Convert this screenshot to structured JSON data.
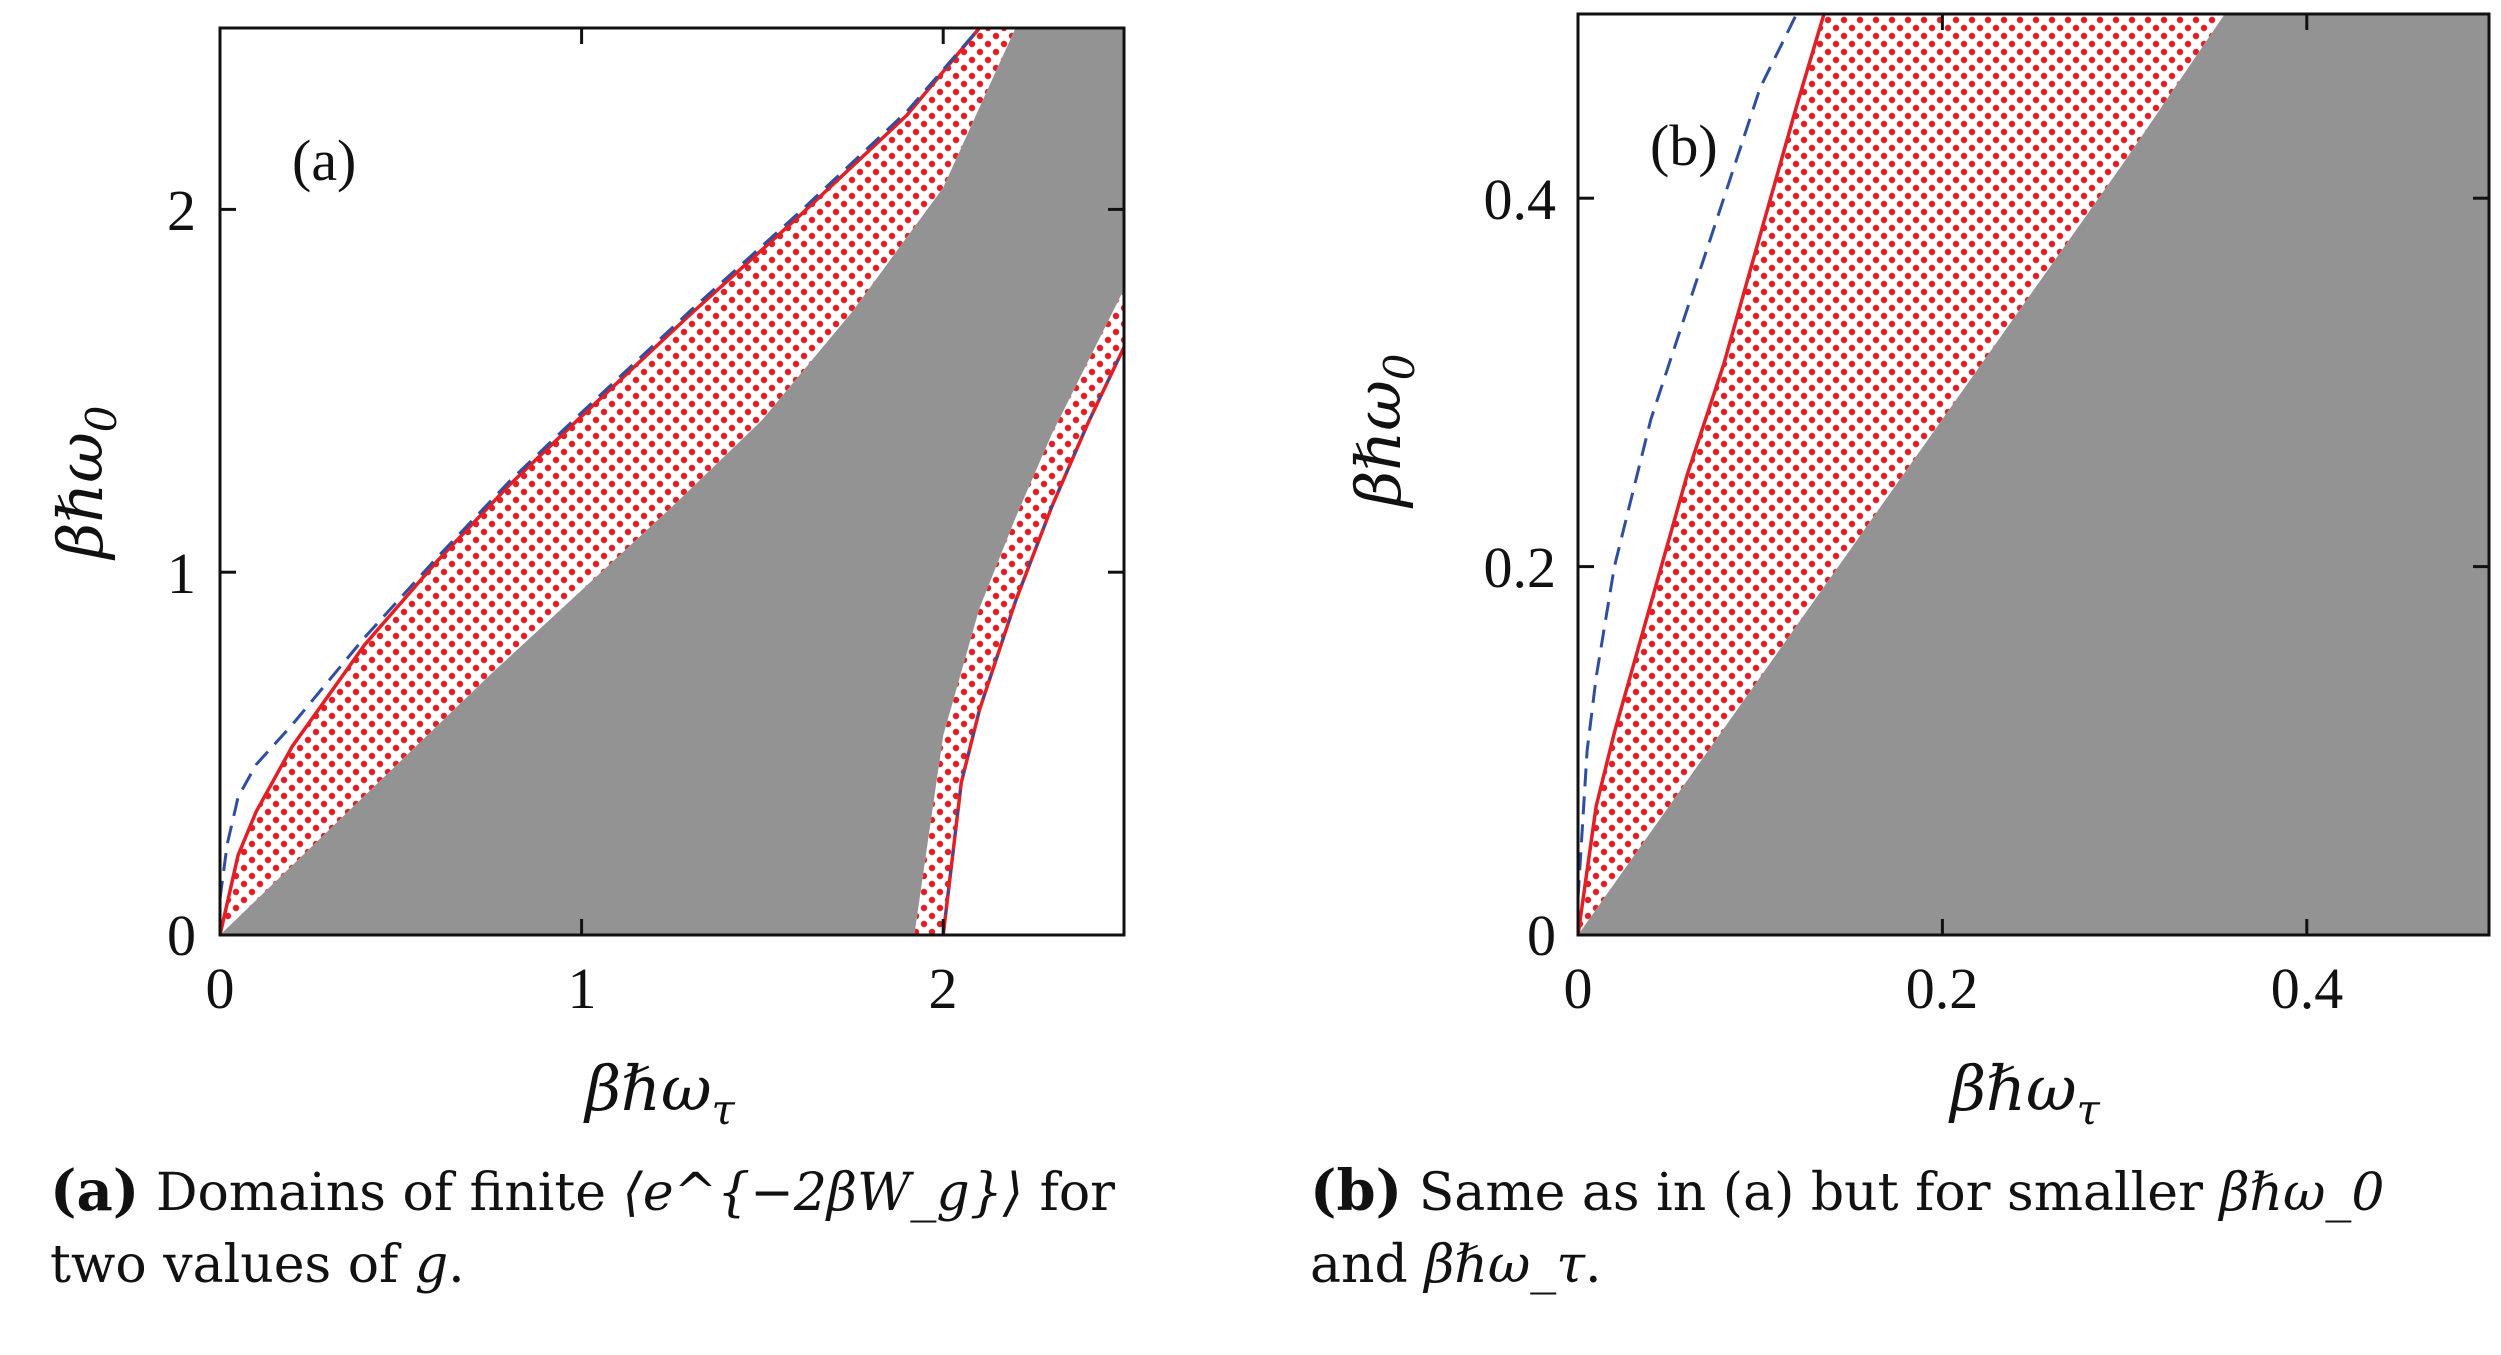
{
  "colors": {
    "gray_region": "#939393",
    "dots": "#e31e24",
    "red_curve": "#e31e24",
    "blue_dashed": "#2f4ea0",
    "frame": "#111111"
  },
  "chart_data": [
    {
      "type": "area",
      "panel_label": "(a)",
      "xlabel": "βℏω_τ",
      "ylabel": "βℏω_0",
      "xlim": [
        0,
        2.5
      ],
      "ylim": [
        0,
        2.5
      ],
      "x_ticks": [
        0,
        1,
        2
      ],
      "y_ticks": [
        0,
        1,
        2
      ],
      "tick_labels_x": [
        "0",
        "1",
        "2"
      ],
      "tick_labels_y": [
        "0",
        "1",
        "2"
      ],
      "series": [
        {
          "name": "gray region boundary (left)",
          "x": [
            0,
            0.25,
            0.5,
            0.75,
            1.0,
            1.25,
            1.5,
            1.75,
            2.0,
            2.2
          ],
          "y": [
            0,
            0.24,
            0.48,
            0.72,
            0.95,
            1.18,
            1.42,
            1.72,
            2.06,
            2.5
          ]
        },
        {
          "name": "gray region boundary (right)",
          "x": [
            1.92,
            2.0,
            2.1,
            2.2,
            2.3,
            2.4,
            2.5
          ],
          "y": [
            0,
            0.55,
            0.9,
            1.15,
            1.38,
            1.58,
            1.78
          ]
        },
        {
          "name": "red solid curve (upper)",
          "x": [
            0,
            0.05,
            0.1,
            0.2,
            0.4,
            0.6,
            0.8,
            1.0,
            1.3,
            1.6,
            1.9,
            2.1
          ],
          "y": [
            0,
            0.22,
            0.34,
            0.52,
            0.8,
            1.03,
            1.24,
            1.43,
            1.71,
            1.98,
            2.26,
            2.5
          ]
        },
        {
          "name": "blue dashed curve (upper)",
          "x": [
            0,
            0.02,
            0.05,
            0.1,
            0.2,
            0.4,
            0.6,
            0.8,
            1.0,
            1.3,
            1.6,
            1.9,
            2.1
          ],
          "y": [
            0.1,
            0.25,
            0.38,
            0.47,
            0.58,
            0.82,
            1.04,
            1.25,
            1.44,
            1.72,
            1.99,
            2.27,
            2.5
          ]
        },
        {
          "name": "red solid curve (lower right)",
          "x": [
            2.0,
            2.05,
            2.1,
            2.2,
            2.3,
            2.4,
            2.5
          ],
          "y": [
            0,
            0.42,
            0.62,
            0.92,
            1.18,
            1.41,
            1.62
          ]
        }
      ]
    },
    {
      "type": "area",
      "panel_label": "(b)",
      "xlabel": "βℏω_τ",
      "ylabel": "βℏω_0",
      "xlim": [
        0,
        0.5
      ],
      "ylim": [
        0,
        0.5
      ],
      "x_ticks": [
        0,
        0.2,
        0.4
      ],
      "y_ticks": [
        0,
        0.2,
        0.4
      ],
      "tick_labels_x": [
        "0",
        "0.2",
        "0.4"
      ],
      "tick_labels_y": [
        "0",
        "0.2",
        "0.4"
      ],
      "series": [
        {
          "name": "gray region boundary",
          "x": [
            0,
            0.1,
            0.2,
            0.3,
            0.355
          ],
          "y": [
            0,
            0.14,
            0.28,
            0.42,
            0.5
          ]
        },
        {
          "name": "red solid curve",
          "x": [
            0,
            0.01,
            0.02,
            0.04,
            0.06,
            0.08,
            0.1,
            0.12,
            0.135
          ],
          "y": [
            0,
            0.07,
            0.11,
            0.18,
            0.25,
            0.31,
            0.38,
            0.45,
            0.5
          ]
        },
        {
          "name": "blue dashed curve",
          "x": [
            0,
            0.005,
            0.01,
            0.02,
            0.04,
            0.06,
            0.08,
            0.1,
            0.12
          ],
          "y": [
            0.02,
            0.1,
            0.14,
            0.2,
            0.28,
            0.34,
            0.4,
            0.46,
            0.5
          ]
        }
      ]
    }
  ],
  "captions": {
    "a": {
      "tag": "(a)",
      "text_before": "Domains of finite ",
      "math": "⟨e^{−2βW_g}⟩",
      "text_after": " for two values of ",
      "var": "g",
      "end": "."
    },
    "b": {
      "tag": "(b)",
      "text_before": "Same as in (a) but for smaller ",
      "math1": "βℏω_0",
      "mid": " and ",
      "math2": "βℏω_τ",
      "end": "."
    }
  }
}
